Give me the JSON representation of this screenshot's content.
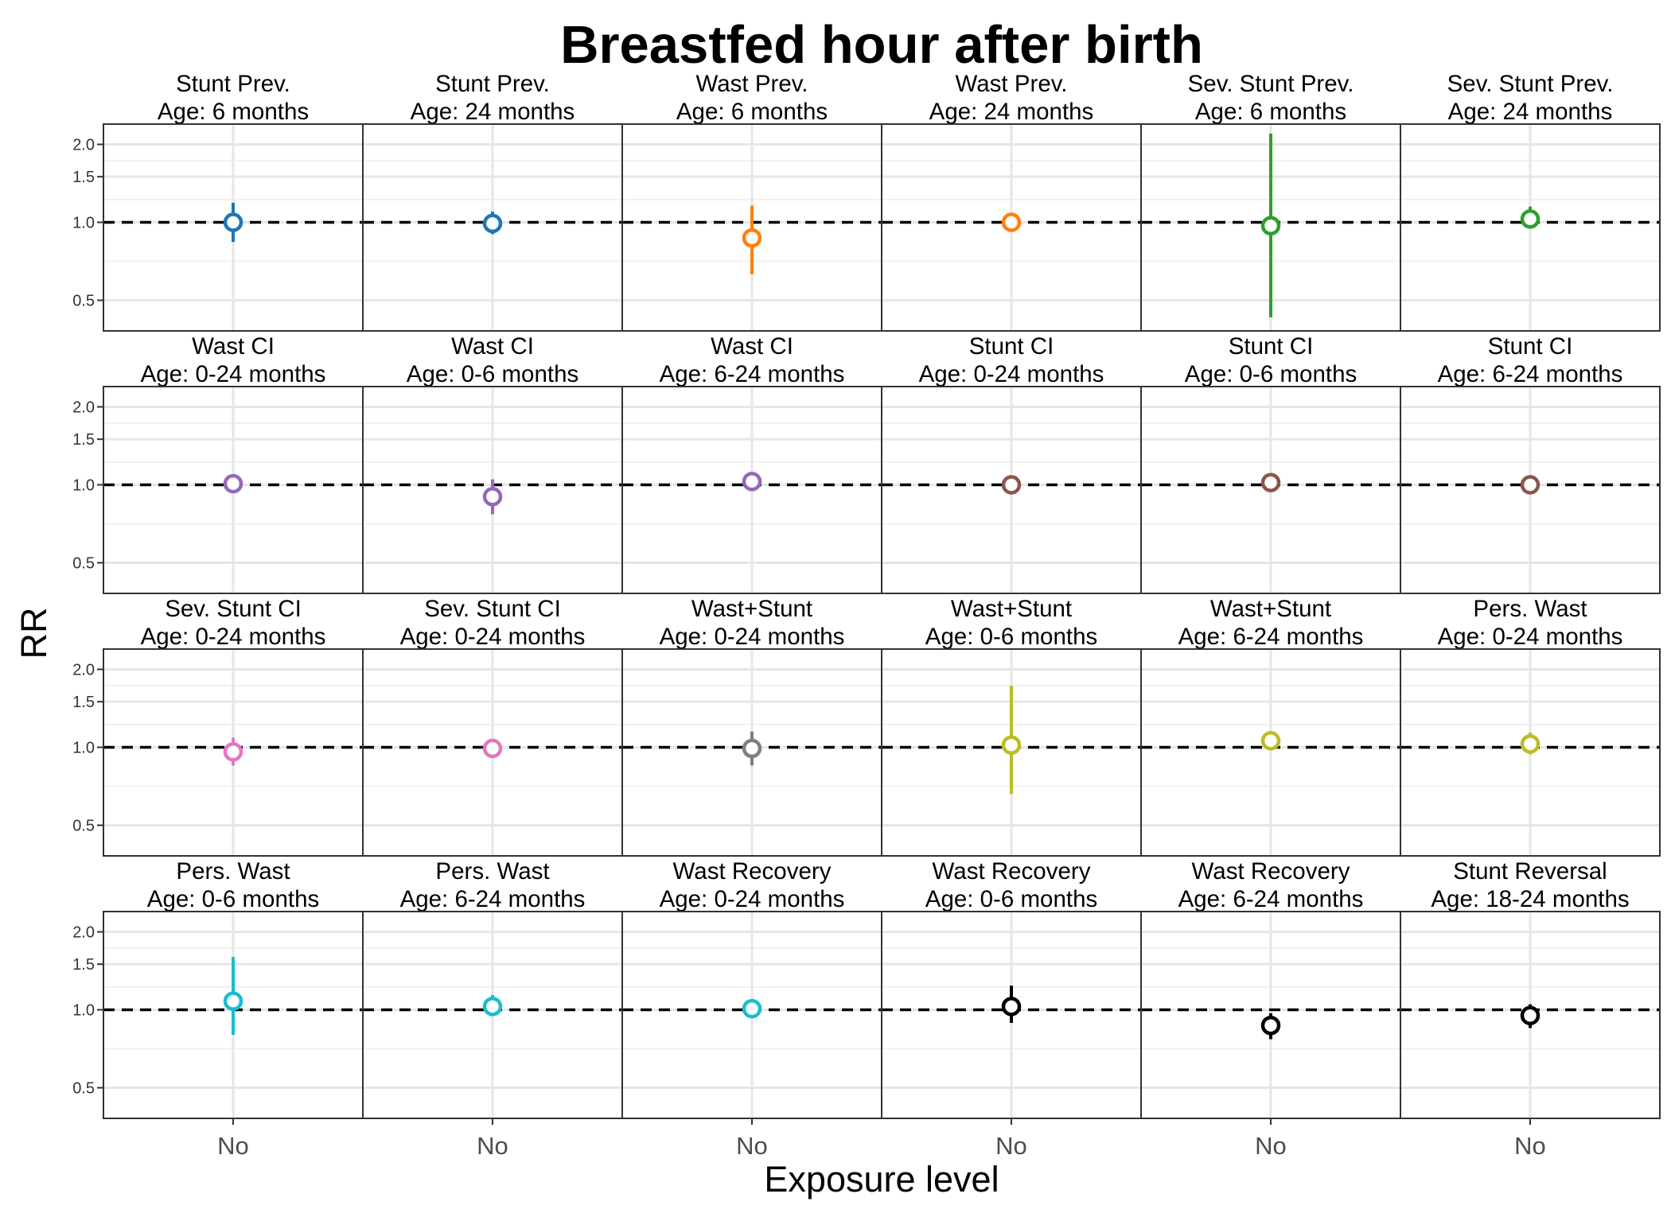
{
  "chart_data": {
    "type": "scatter",
    "title": "Breastfed hour after birth",
    "xlabel": "Exposure level",
    "ylabel": "RR",
    "y_scale": "log",
    "ylim": [
      0.35,
      2.3
    ],
    "y_ticks": [
      0.5,
      1.0,
      1.5,
      2.0
    ],
    "y_tick_labels": [
      "0.5",
      "1.0",
      "1.5",
      "2.0"
    ],
    "x_categories": [
      "No"
    ],
    "reference_line": 1.0,
    "grid": true,
    "layout": "facet grid, 4 rows x 6 columns",
    "colors": {
      "blue": "#1F77B4",
      "orange": "#FF7F0E",
      "green": "#2CA02C",
      "purple": "#9467BD",
      "brown": "#8C564B",
      "pink": "#E377C2",
      "gray": "#7F7F7F",
      "olive": "#BCBD22",
      "cyan": "#17BECF",
      "black": "#000000"
    },
    "panels": [
      {
        "outcome": "Stunt Prev.",
        "age": "Age: 6 months",
        "x": "No",
        "rr": 1.0,
        "ci_lower": 0.84,
        "ci_upper": 1.19,
        "color": "#1F77B4"
      },
      {
        "outcome": "Stunt Prev.",
        "age": "Age: 24 months",
        "x": "No",
        "rr": 0.99,
        "ci_lower": 0.9,
        "ci_upper": 1.1,
        "color": "#1F77B4"
      },
      {
        "outcome": "Wast Prev.",
        "age": "Age: 6 months",
        "x": "No",
        "rr": 0.87,
        "ci_lower": 0.63,
        "ci_upper": 1.16,
        "color": "#FF7F0E"
      },
      {
        "outcome": "Wast Prev.",
        "age": "Age: 24 months",
        "x": "No",
        "rr": 1.0,
        "ci_lower": 0.92,
        "ci_upper": 1.09,
        "color": "#FF7F0E"
      },
      {
        "outcome": "Sev. Stunt Prev.",
        "age": "Age: 6 months",
        "x": "No",
        "rr": 0.97,
        "ci_lower": 0.43,
        "ci_upper": 2.2,
        "color": "#2CA02C"
      },
      {
        "outcome": "Sev. Stunt Prev.",
        "age": "Age: 24 months",
        "x": "No",
        "rr": 1.03,
        "ci_lower": 0.95,
        "ci_upper": 1.15,
        "color": "#2CA02C"
      },
      {
        "outcome": "Wast CI",
        "age": "Age: 0-24 months",
        "x": "No",
        "rr": 1.01,
        "ci_lower": 0.98,
        "ci_upper": 1.05,
        "color": "#9467BD"
      },
      {
        "outcome": "Wast CI",
        "age": "Age: 0-6 months",
        "x": "No",
        "rr": 0.9,
        "ci_lower": 0.77,
        "ci_upper": 1.05,
        "color": "#9467BD"
      },
      {
        "outcome": "Wast CI",
        "age": "Age: 6-24 months",
        "x": "No",
        "rr": 1.03,
        "ci_lower": 0.99,
        "ci_upper": 1.07,
        "color": "#9467BD"
      },
      {
        "outcome": "Stunt CI",
        "age": "Age: 0-24 months",
        "x": "No",
        "rr": 1.0,
        "ci_lower": 0.97,
        "ci_upper": 1.03,
        "color": "#8C564B"
      },
      {
        "outcome": "Stunt CI",
        "age": "Age: 0-6 months",
        "x": "No",
        "rr": 1.02,
        "ci_lower": 0.95,
        "ci_upper": 1.1,
        "color": "#8C564B"
      },
      {
        "outcome": "Stunt CI",
        "age": "Age: 6-24 months",
        "x": "No",
        "rr": 1.0,
        "ci_lower": 0.97,
        "ci_upper": 1.03,
        "color": "#8C564B"
      },
      {
        "outcome": "Sev. Stunt CI",
        "age": "Age: 0-24 months",
        "x": "No",
        "rr": 0.96,
        "ci_lower": 0.85,
        "ci_upper": 1.09,
        "color": "#E377C2"
      },
      {
        "outcome": "Sev. Stunt CI",
        "age": "Age: 0-24 months",
        "x": "No",
        "rr": 0.99,
        "ci_lower": 0.93,
        "ci_upper": 1.05,
        "color": "#E377C2"
      },
      {
        "outcome": "Wast+Stunt",
        "age": "Age: 0-24 months",
        "x": "No",
        "rr": 0.99,
        "ci_lower": 0.85,
        "ci_upper": 1.15,
        "color": "#7F7F7F"
      },
      {
        "outcome": "Wast+Stunt",
        "age": "Age: 0-6 months",
        "x": "No",
        "rr": 1.02,
        "ci_lower": 0.66,
        "ci_upper": 1.73,
        "color": "#BCBD22"
      },
      {
        "outcome": "Wast+Stunt",
        "age": "Age: 6-24 months",
        "x": "No",
        "rr": 1.06,
        "ci_lower": 1.02,
        "ci_upper": 1.1,
        "color": "#BCBD22"
      },
      {
        "outcome": "Pers. Wast",
        "age": "Age: 0-24 months",
        "x": "No",
        "rr": 1.03,
        "ci_lower": 0.94,
        "ci_upper": 1.14,
        "color": "#BCBD22"
      },
      {
        "outcome": "Pers. Wast",
        "age": "Age: 0-6 months",
        "x": "No",
        "rr": 1.08,
        "ci_lower": 0.8,
        "ci_upper": 1.6,
        "color": "#17BECF"
      },
      {
        "outcome": "Pers. Wast",
        "age": "Age: 6-24 months",
        "x": "No",
        "rr": 1.03,
        "ci_lower": 0.95,
        "ci_upper": 1.14,
        "color": "#17BECF"
      },
      {
        "outcome": "Wast Recovery",
        "age": "Age: 0-24 months",
        "x": "No",
        "rr": 1.01,
        "ci_lower": 0.95,
        "ci_upper": 1.1,
        "color": "#17BECF"
      },
      {
        "outcome": "Wast Recovery",
        "age": "Age: 0-6 months",
        "x": "No",
        "rr": 1.03,
        "ci_lower": 0.89,
        "ci_upper": 1.24,
        "color": "#000000"
      },
      {
        "outcome": "Wast Recovery",
        "age": "Age: 6-24 months",
        "x": "No",
        "rr": 0.87,
        "ci_lower": 0.77,
        "ci_upper": 0.97,
        "color": "#000000"
      },
      {
        "outcome": "Stunt Reversal",
        "age": "Age: 18-24 months",
        "x": "No",
        "rr": 0.95,
        "ci_lower": 0.85,
        "ci_upper": 1.05,
        "color": "#000000"
      }
    ]
  }
}
